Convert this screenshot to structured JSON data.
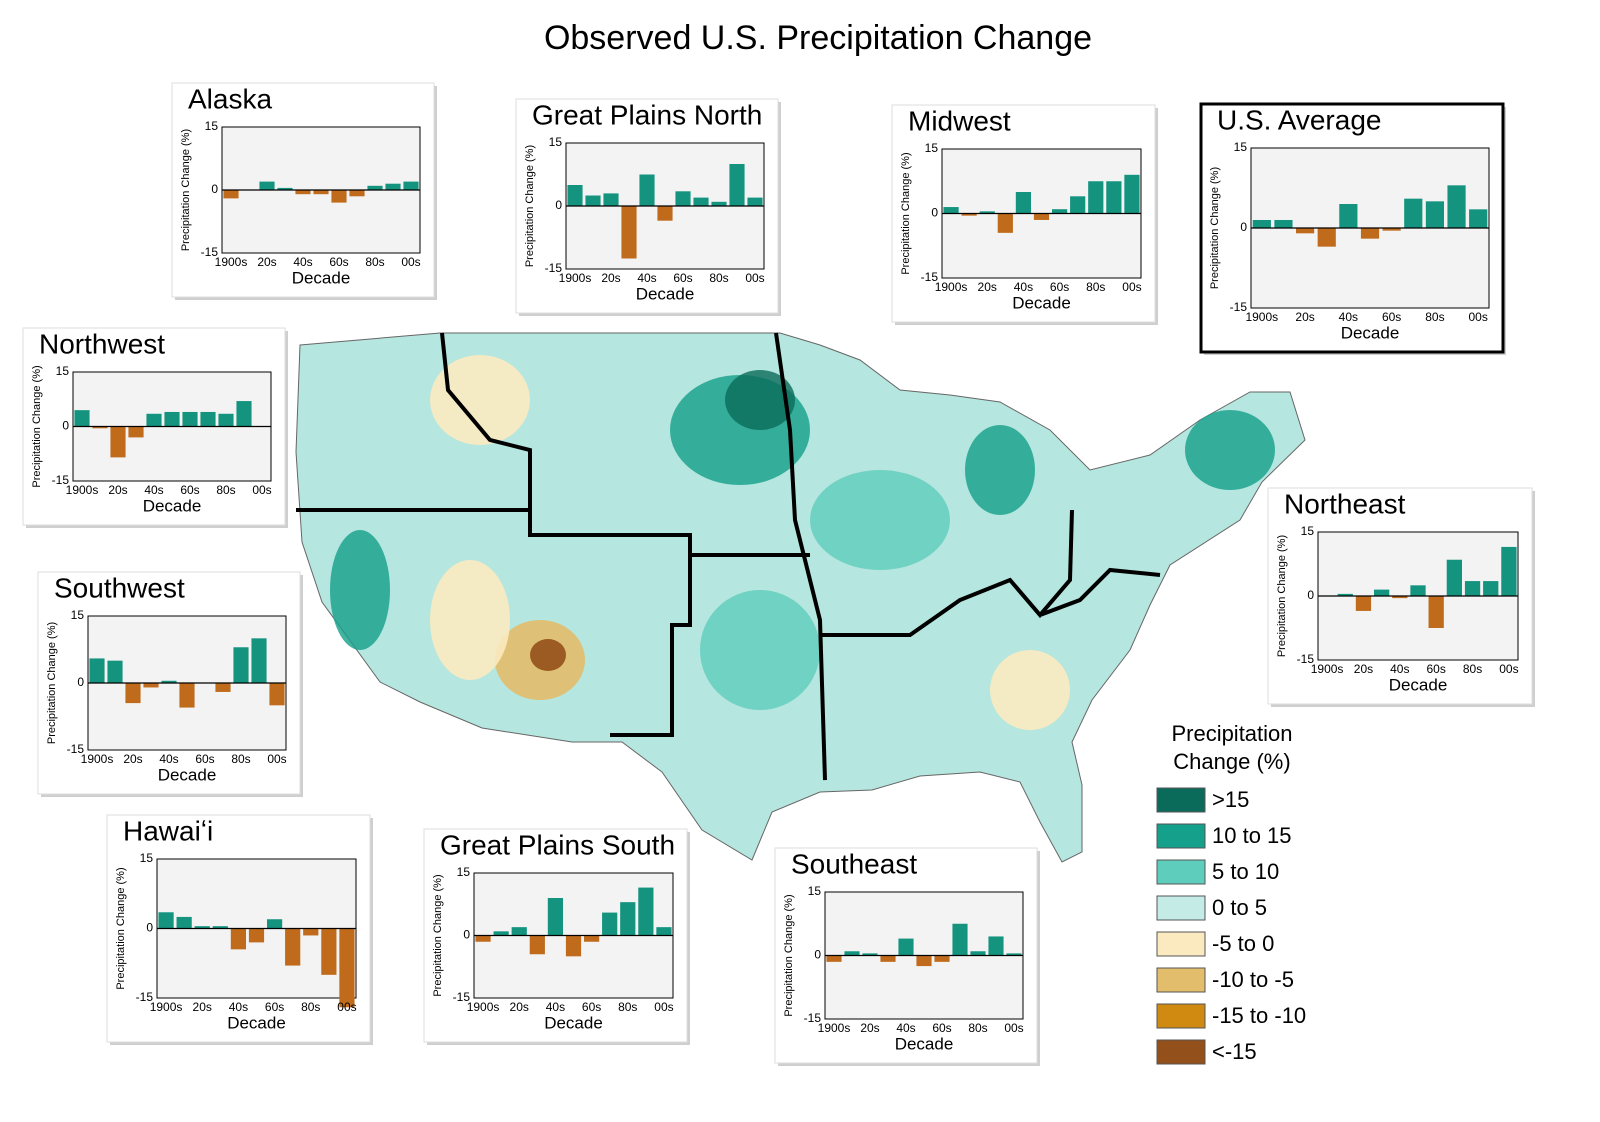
{
  "title": "Observed U.S. Precipitation Change",
  "chart_data": [
    {
      "type": "bar",
      "title": "Alaska",
      "y_label": "Precipitation Change (%)",
      "x_label": "Decade",
      "categories": [
        "1900s",
        null,
        "20s",
        null,
        "40s",
        null,
        "60s",
        null,
        "80s",
        null,
        "00s"
      ],
      "values": [
        -2,
        0,
        2,
        0.5,
        -1,
        -1,
        -3,
        -1.5,
        1,
        1.5,
        2
      ],
      "ylim": [
        -15,
        15
      ],
      "yticks": [
        -15,
        0,
        15
      ],
      "positive_color": "#14937f",
      "negative_color": "#bf6b1b"
    },
    {
      "type": "bar",
      "title": "Great Plains North",
      "y_label": "Precipitation Change (%)",
      "x_label": "Decade",
      "categories": [
        "1900s",
        null,
        "20s",
        null,
        "40s",
        null,
        "60s",
        null,
        "80s",
        null,
        "00s"
      ],
      "values": [
        5,
        2.5,
        3,
        -12.5,
        7.5,
        -3.5,
        3.5,
        2,
        1,
        10,
        2
      ],
      "ylim": [
        -15,
        15
      ],
      "yticks": [
        -15,
        0,
        15
      ],
      "positive_color": "#14937f",
      "negative_color": "#bf6b1b"
    },
    {
      "type": "bar",
      "title": "Midwest",
      "y_label": "Precipitation Change (%)",
      "x_label": "Decade",
      "categories": [
        "1900s",
        null,
        "20s",
        null,
        "40s",
        null,
        "60s",
        null,
        "80s",
        null,
        "00s"
      ],
      "values": [
        1.5,
        -0.5,
        0.5,
        -4.5,
        5,
        -1.5,
        1,
        4,
        7.5,
        7.5,
        9
      ],
      "ylim": [
        -15,
        15
      ],
      "yticks": [
        -15,
        0,
        15
      ],
      "positive_color": "#14937f",
      "negative_color": "#bf6b1b"
    },
    {
      "type": "bar",
      "title": "U.S. Average",
      "y_label": "Precipitation Change (%)",
      "x_label": "Decade",
      "categories": [
        "1900s",
        null,
        "20s",
        null,
        "40s",
        null,
        "60s",
        null,
        "80s",
        null,
        "00s"
      ],
      "values": [
        1.5,
        1.5,
        -1,
        -3.5,
        4.5,
        -2,
        -0.5,
        5.5,
        5,
        8,
        3.5
      ],
      "ylim": [
        -15,
        15
      ],
      "yticks": [
        -15,
        0,
        15
      ],
      "positive_color": "#14937f",
      "negative_color": "#bf6b1b"
    },
    {
      "type": "bar",
      "title": "Northwest",
      "y_label": "Precipitation Change (%)",
      "x_label": "Decade",
      "categories": [
        "1900s",
        null,
        "20s",
        null,
        "40s",
        null,
        "60s",
        null,
        "80s",
        null,
        "00s"
      ],
      "values": [
        4.5,
        -0.5,
        -8.5,
        -3,
        3.5,
        4,
        4,
        4,
        3.5,
        7,
        0
      ],
      "ylim": [
        -15,
        15
      ],
      "yticks": [
        -15,
        0,
        15
      ],
      "positive_color": "#14937f",
      "negative_color": "#bf6b1b"
    },
    {
      "type": "bar",
      "title": "Northeast",
      "y_label": "Precipitation Change (%)",
      "x_label": "Decade",
      "categories": [
        "1900s",
        null,
        "20s",
        null,
        "40s",
        null,
        "60s",
        null,
        "80s",
        null,
        "00s"
      ],
      "values": [
        0,
        0.5,
        -3.5,
        1.5,
        -0.5,
        2.5,
        -7.5,
        8.5,
        3.5,
        3.5,
        11.5
      ],
      "ylim": [
        -15,
        15
      ],
      "yticks": [
        -15,
        0,
        15
      ],
      "positive_color": "#14937f",
      "negative_color": "#bf6b1b"
    },
    {
      "type": "bar",
      "title": "Southwest",
      "y_label": "Precipitation Change (%)",
      "x_label": "Decade",
      "categories": [
        "1900s",
        null,
        "20s",
        null,
        "40s",
        null,
        "60s",
        null,
        "80s",
        null,
        "00s"
      ],
      "values": [
        5.5,
        5,
        -4.5,
        -1,
        0.5,
        -5.5,
        0,
        -2,
        8,
        10,
        -5
      ],
      "ylim": [
        -15,
        15
      ],
      "yticks": [
        -15,
        0,
        15
      ],
      "positive_color": "#14937f",
      "negative_color": "#bf6b1b"
    },
    {
      "type": "bar",
      "title": "Hawaiʻi",
      "y_label": "Precipitation Change (%)",
      "x_label": "Decade",
      "categories": [
        "1900s",
        null,
        "20s",
        null,
        "40s",
        null,
        "60s",
        null,
        "80s",
        null,
        "00s"
      ],
      "values": [
        3.5,
        2.5,
        0.5,
        0.5,
        -4.5,
        -3,
        2,
        -8,
        -1.5,
        -10,
        -17
      ],
      "ylim": [
        -15,
        15
      ],
      "yticks": [
        -15,
        0,
        15
      ],
      "positive_color": "#14937f",
      "negative_color": "#bf6b1b"
    },
    {
      "type": "bar",
      "title": "Great Plains South",
      "y_label": "Precipitation Change (%)",
      "x_label": "Decade",
      "categories": [
        "1900s",
        null,
        "20s",
        null,
        "40s",
        null,
        "60s",
        null,
        "80s",
        null,
        "00s"
      ],
      "values": [
        -1.5,
        1,
        2,
        -4.5,
        9,
        -5,
        -1.5,
        5.5,
        8,
        11.5,
        2
      ],
      "ylim": [
        -15,
        15
      ],
      "yticks": [
        -15,
        0,
        15
      ],
      "positive_color": "#14937f",
      "negative_color": "#bf6b1b"
    },
    {
      "type": "bar",
      "title": "Southeast",
      "y_label": "Precipitation Change (%)",
      "x_label": "Decade",
      "categories": [
        "1900s",
        null,
        "20s",
        null,
        "40s",
        null,
        "60s",
        null,
        "80s",
        null,
        "00s"
      ],
      "values": [
        -1.5,
        1,
        0.5,
        -1.5,
        4,
        -2.5,
        -1.5,
        7.5,
        1,
        4.5,
        0.5
      ],
      "ylim": [
        -15,
        15
      ],
      "yticks": [
        -15,
        0,
        15
      ],
      "positive_color": "#14937f",
      "negative_color": "#bf6b1b"
    }
  ],
  "legend": {
    "title": [
      "Precipitation",
      "Change (%)"
    ],
    "items": [
      {
        "label": ">15",
        "color": "#0b6b5a"
      },
      {
        "label": "10 to 15",
        "color": "#14a08a"
      },
      {
        "label": "5 to 10",
        "color": "#5ecdbb"
      },
      {
        "label": "0 to 5",
        "color": "#c4ebe6"
      },
      {
        "label": "-5 to 0",
        "color": "#fbeac0"
      },
      {
        "label": "-10 to -5",
        "color": "#e2bd6c"
      },
      {
        "label": "-15 to -10",
        "color": "#d08a12"
      },
      {
        "label": "<-15",
        "color": "#93501a"
      }
    ]
  }
}
